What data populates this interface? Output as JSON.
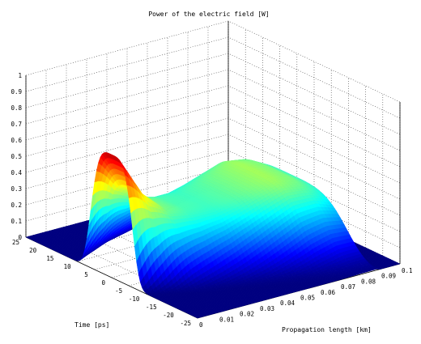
{
  "chart_data": {
    "type": "surface",
    "title": "Power of the electric field [W]",
    "xlabel": "Propagation length [km]",
    "ylabel": "Time [ps]",
    "zlabel": "",
    "xlim": [
      0,
      0.1
    ],
    "ylim": [
      -25,
      25
    ],
    "zlim": [
      0,
      1
    ],
    "x_ticks": [
      "0",
      "0.01",
      "0.02",
      "0.03",
      "0.04",
      "0.05",
      "0.06",
      "0.07",
      "0.08",
      "0.09",
      "0.1"
    ],
    "y_ticks": [
      "-25",
      "-20",
      "-15",
      "-10",
      "-5",
      "0",
      "5",
      "10",
      "15",
      "20",
      "25"
    ],
    "z_ticks": [
      "0",
      "0.1",
      "0.2",
      "0.3",
      "0.4",
      "0.5",
      "0.6",
      "0.7",
      "0.8",
      "0.9",
      "1"
    ],
    "grid": true,
    "colormap": "jet",
    "series": [
      {
        "x": [
          0,
          0.01,
          0.02,
          0.03,
          0.04,
          0.05,
          0.06,
          0.07,
          0.08,
          0.09
        ],
        "peak_power": [
          0.76,
          0.52,
          0.4,
          0.36,
          0.35,
          0.37,
          0.4,
          0.43,
          0.4,
          0.33
        ],
        "pulse_center_ps": [
          0,
          0,
          0,
          0,
          0,
          0,
          0,
          0,
          0,
          0
        ],
        "pulse_width_ps": [
          5.5,
          7.0,
          8.5,
          9.5,
          10.5,
          11.5,
          12.5,
          13.5,
          14.5,
          15.0
        ]
      }
    ]
  }
}
